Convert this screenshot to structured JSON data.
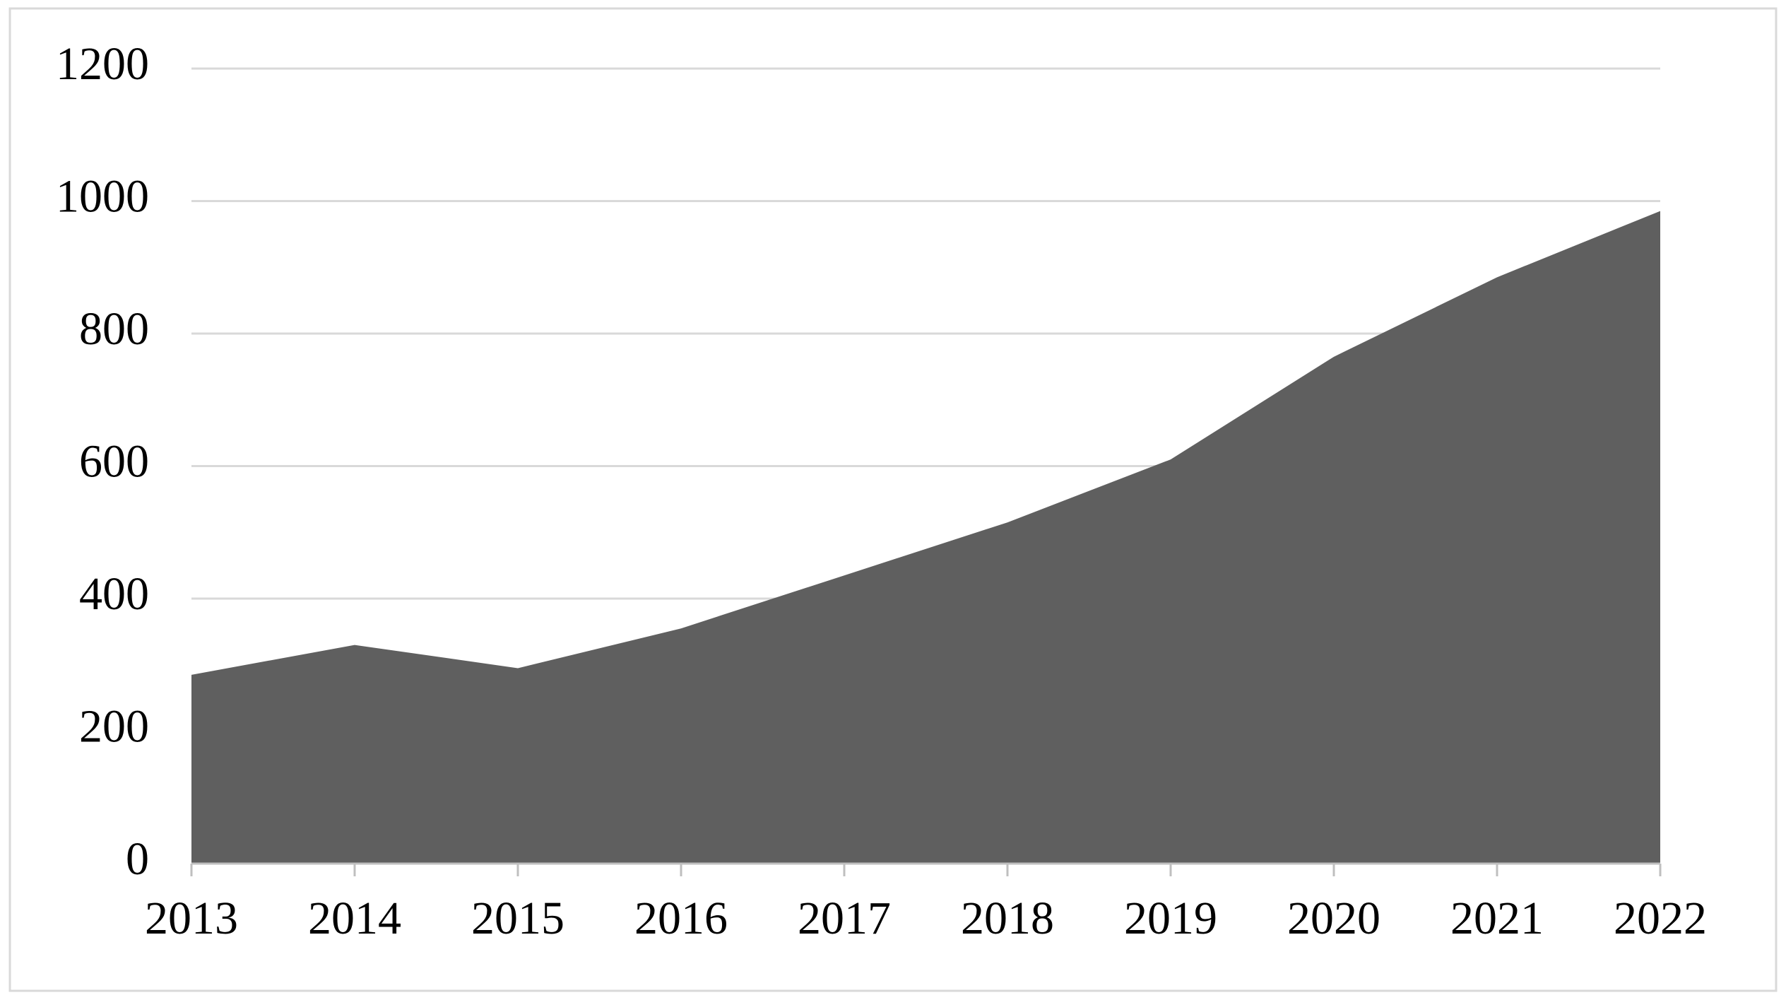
{
  "chart_data": {
    "type": "area",
    "categories": [
      "2013",
      "2014",
      "2015",
      "2016",
      "2017",
      "2018",
      "2019",
      "2020",
      "2021",
      "2022"
    ],
    "values": [
      285,
      330,
      295,
      355,
      435,
      515,
      610,
      765,
      885,
      985
    ],
    "color": "#5f5f5f",
    "ylim": [
      0,
      1200
    ],
    "yticks": [
      0,
      200,
      400,
      600,
      800,
      1000,
      1200
    ],
    "grid": true
  }
}
